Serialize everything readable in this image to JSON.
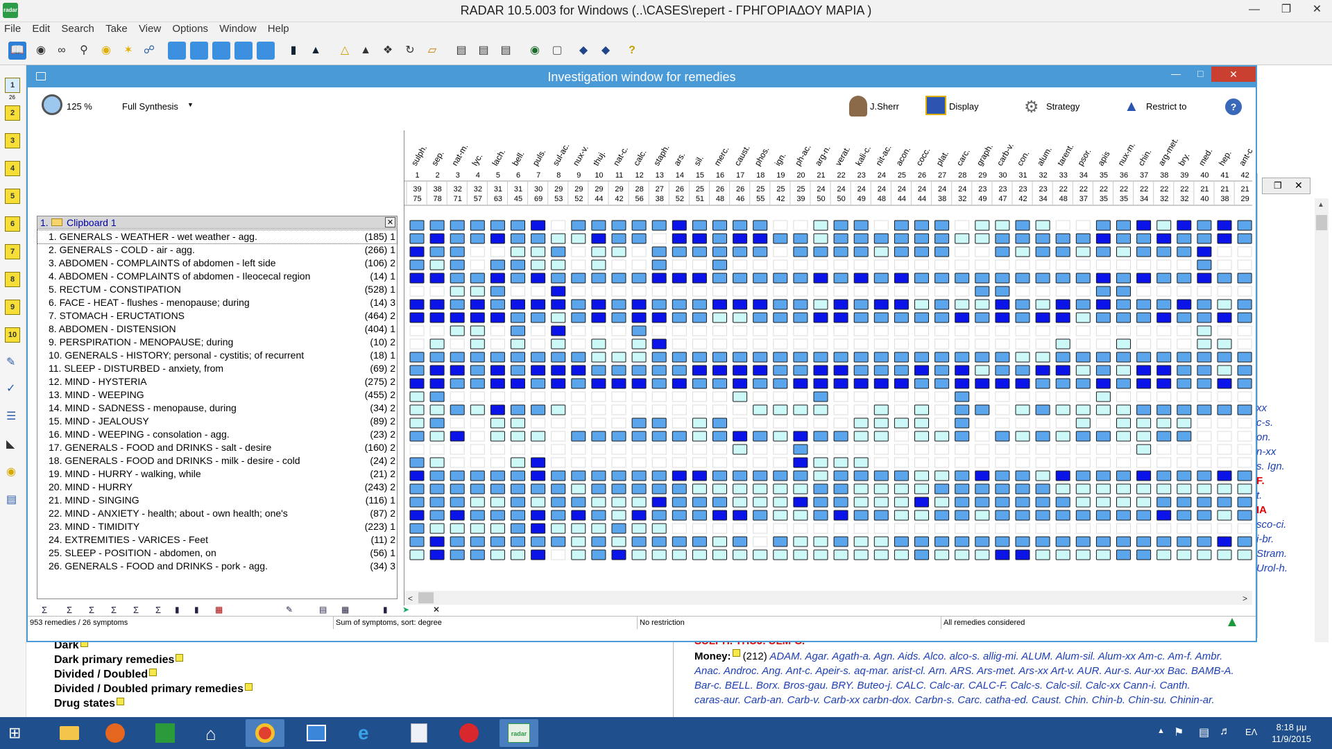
{
  "app": {
    "title": "RADAR 10.5.003 for Windows  (..\\CASES\\repert - ΓΡΗΓΟΡΙΑΔΟΥ  ΜΑΡΙΑ )",
    "logo_text": "radar"
  },
  "menu": [
    "File",
    "Edit",
    "Search",
    "Take",
    "View",
    "Options",
    "Window",
    "Help"
  ],
  "left_toolbar": [
    "1",
    "2",
    "3",
    "4",
    "5",
    "6",
    "7",
    "8",
    "9",
    "10"
  ],
  "left_toolbar_top_sub": "26",
  "inv_window": {
    "title": "Investigation window for remedies",
    "zoom": "125 %",
    "analysis": "Full Synthesis",
    "sherr_label": "J.Sherr",
    "display_label": "Display",
    "strategy_label": "Strategy",
    "restrict_label": "Restrict to",
    "help": "?"
  },
  "clipboard": {
    "number": "1.",
    "title": "Clipboard 1",
    "close": "✕"
  },
  "symptoms": [
    {
      "label": "1. GENERALS - WEATHER - wet weather - agg.",
      "count": "(185) 1"
    },
    {
      "label": "2. GENERALS - COLD - air - agg.",
      "count": "(266) 1"
    },
    {
      "label": "3. ABDOMEN - COMPLAINTS of abdomen - left side",
      "count": "(106) 2"
    },
    {
      "label": "4. ABDOMEN - COMPLAINTS of abdomen - Ileocecal region",
      "count": "(14) 1"
    },
    {
      "label": "5. RECTUM - CONSTIPATION",
      "count": "(528) 1"
    },
    {
      "label": "6. FACE - HEAT - flushes - menopause; during",
      "count": "(14) 3"
    },
    {
      "label": "7. STOMACH - ERUCTATIONS",
      "count": "(464) 2"
    },
    {
      "label": "8. ABDOMEN - DISTENSION",
      "count": "(404) 1"
    },
    {
      "label": "9. PERSPIRATION - MENOPAUSE; during",
      "count": "(10) 2"
    },
    {
      "label": "10. GENERALS - HISTORY; personal - cystitis; of recurrent",
      "count": "(18) 1"
    },
    {
      "label": "11. SLEEP - DISTURBED - anxiety, from",
      "count": "(69) 2"
    },
    {
      "label": "12. MIND - HYSTERIA",
      "count": "(275) 2"
    },
    {
      "label": "13. MIND - WEEPING",
      "count": "(455) 2"
    },
    {
      "label": "14. MIND - SADNESS - menopause, during",
      "count": "(34) 2"
    },
    {
      "label": "15. MIND - JEALOUSY",
      "count": "(89) 2"
    },
    {
      "label": "16. MIND - WEEPING - consolation - agg.",
      "count": "(23) 2"
    },
    {
      "label": "17. GENERALS - FOOD and DRINKS - salt - desire",
      "count": "(160) 2"
    },
    {
      "label": "18. GENERALS - FOOD and DRINKS - milk - desire - cold",
      "count": "(24) 2"
    },
    {
      "label": "19. MIND - HURRY - walking, while",
      "count": "(21) 2"
    },
    {
      "label": "20. MIND - HURRY",
      "count": "(243) 2"
    },
    {
      "label": "21. MIND - SINGING",
      "count": "(116) 1"
    },
    {
      "label": "22. MIND - ANXIETY - health; about - own health; one's",
      "count": "(87) 2"
    },
    {
      "label": "23. MIND - TIMIDITY",
      "count": "(223) 1"
    },
    {
      "label": "24. EXTREMITIES - VARICES - Feet",
      "count": "(11) 2"
    },
    {
      "label": "25. SLEEP - POSITION - abdomen, on",
      "count": "(56) 1"
    },
    {
      "label": "26. GENERALS - FOOD and DRINKS - pork - agg.",
      "count": "(34) 3"
    }
  ],
  "remedies": [
    {
      "n": "sulph.",
      "r": "1",
      "a": "39",
      "b": "75"
    },
    {
      "n": "sep.",
      "r": "2",
      "a": "38",
      "b": "78"
    },
    {
      "n": "nat-m.",
      "r": "3",
      "a": "32",
      "b": "71"
    },
    {
      "n": "lyc.",
      "r": "4",
      "a": "32",
      "b": "57"
    },
    {
      "n": "lach.",
      "r": "5",
      "a": "31",
      "b": "63"
    },
    {
      "n": "bell.",
      "r": "6",
      "a": "31",
      "b": "45"
    },
    {
      "n": "puls.",
      "r": "7",
      "a": "30",
      "b": "69"
    },
    {
      "n": "sul-ac.",
      "r": "8",
      "a": "29",
      "b": "53"
    },
    {
      "n": "nux-v.",
      "r": "9",
      "a": "29",
      "b": "52"
    },
    {
      "n": "thuj.",
      "r": "10",
      "a": "29",
      "b": "44"
    },
    {
      "n": "nat-c.",
      "r": "11",
      "a": "29",
      "b": "42"
    },
    {
      "n": "calc.",
      "r": "12",
      "a": "28",
      "b": "56"
    },
    {
      "n": "staph.",
      "r": "13",
      "a": "27",
      "b": "38"
    },
    {
      "n": "ars.",
      "r": "14",
      "a": "26",
      "b": "52"
    },
    {
      "n": "sil.",
      "r": "15",
      "a": "25",
      "b": "51"
    },
    {
      "n": "merc.",
      "r": "16",
      "a": "26",
      "b": "48"
    },
    {
      "n": "caust.",
      "r": "17",
      "a": "26",
      "b": "46"
    },
    {
      "n": "phos.",
      "r": "18",
      "a": "25",
      "b": "55"
    },
    {
      "n": "ign.",
      "r": "19",
      "a": "25",
      "b": "42"
    },
    {
      "n": "ph-ac.",
      "r": "20",
      "a": "25",
      "b": "39"
    },
    {
      "n": "arg-n.",
      "r": "21",
      "a": "24",
      "b": "50"
    },
    {
      "n": "verat.",
      "r": "22",
      "a": "24",
      "b": "50"
    },
    {
      "n": "kali-c.",
      "r": "23",
      "a": "24",
      "b": "49"
    },
    {
      "n": "nit-ac.",
      "r": "24",
      "a": "24",
      "b": "48"
    },
    {
      "n": "acon.",
      "r": "25",
      "a": "24",
      "b": "44"
    },
    {
      "n": "cocc.",
      "r": "26",
      "a": "24",
      "b": "44"
    },
    {
      "n": "plat.",
      "r": "27",
      "a": "24",
      "b": "38"
    },
    {
      "n": "carc.",
      "r": "28",
      "a": "24",
      "b": "32"
    },
    {
      "n": "graph.",
      "r": "29",
      "a": "23",
      "b": "49"
    },
    {
      "n": "carb-v.",
      "r": "30",
      "a": "23",
      "b": "47"
    },
    {
      "n": "con.",
      "r": "31",
      "a": "23",
      "b": "42"
    },
    {
      "n": "alum.",
      "r": "32",
      "a": "23",
      "b": "34"
    },
    {
      "n": "tarent.",
      "r": "33",
      "a": "22",
      "b": "48"
    },
    {
      "n": "psor.",
      "r": "34",
      "a": "22",
      "b": "37"
    },
    {
      "n": "apis",
      "r": "35",
      "a": "22",
      "b": "35"
    },
    {
      "n": "nux-m.",
      "r": "36",
      "a": "22",
      "b": "35"
    },
    {
      "n": "chin.",
      "r": "37",
      "a": "22",
      "b": "34"
    },
    {
      "n": "arg-met.",
      "r": "38",
      "a": "22",
      "b": "32"
    },
    {
      "n": "bry.",
      "r": "39",
      "a": "22",
      "b": "32"
    },
    {
      "n": "med.",
      "r": "40",
      "a": "21",
      "b": "40"
    },
    {
      "n": "hep.",
      "r": "41",
      "a": "21",
      "b": "38"
    },
    {
      "n": "ant-c.",
      "r": "42",
      "a": "21",
      "b": "29"
    }
  ],
  "grid_rows": [
    "222222302222232222001220222011210022313232",
    "232232211322033233221222222112222232232232",
    "3220011201102222220222212220021221212223",
    "212022110100200200000000000000000000000200",
    "332232322222333222223232322222222232322322",
    "001120030000000000000000000022000022000000",
    "332323332323222333221323312113213232223212",
    "333332212323322112223322222323233122232232",
    "001102030002000000000000000000000000000100",
    "010101010101300000000000000000001001000110",
    "222222222111222222222222222222112222222222",
    "233232333222223333223322232312233121332212",
    "332233232333232232233333322333322232332232",
    "120000000000000010002000000200000010000000",
    "112132210000000001111001010220121111222222",
    "120011000002201200000011110200000101111000",
    "213011102222221232132211011202121221122",
    "000000000000000010020000000000000000100000",
    "210001300000000000031110000000000000000000",
    "322222322222233222221222211232213222322232",
    "222222221222221111112211112222221111111111",
    "222112122111322211132211131222222111122222",
    "323222323213222332112322112212222222232212",
    "211112311121100000000000000000000000000000",
    "232222221212222120211211222222222222222232",
    "132211301231111111111111121113311112211111"
  ],
  "status": {
    "left": "953 remedies / 26 symptoms",
    "sort": "Sum of symptoms, sort: degree",
    "restriction": "No restriction",
    "remedies_considered": "All remedies considered"
  },
  "bottom_toolbar_close": "✕",
  "background_left": [
    "Dark",
    "Dark  primary remedies",
    "Divided / Doubled",
    "Divided / Doubled primary remedies",
    "Drug states"
  ],
  "background_right": {
    "top_cut": "SULPH. THUJ. ULM-C.",
    "money_label": "Money:",
    "money_count": "(212)",
    "lines": [
      "ADAM. Agar. Agath-a. Agn. Aids. Alco. alco-s. allig-mi. ALUM. Alum-sil. Alum-xx Am-c. Am-f. Ambr.",
      "Anac. Androc. Ang. Ant-c. Apeir-s. aq-mar. arist-cl. Arn. ARS. Ars-met. Ars-xx Art-v. AUR. Aur-s. Aur-xx Bac. BAMB-A.",
      "Bar-c. BELL. Borx. Bros-gau. BRY. Buteo-j. CALC. Calc-ar. CALC-F. Calc-s. Calc-sil. Calc-xx Cann-i. Canth.",
      "caras-aur. Carb-an. Carb-v. Carb-xx carbn-dox. Carbn-s. Carc. catha-ed. Caust. Chin. Chin-b. Chin-su. Chinin-ar."
    ],
    "margin_items": [
      "xx",
      "c-s.",
      "on.",
      "n-xx",
      "s. Ign.",
      "F.",
      "t.",
      "IA",
      "sco-ci.",
      "i-br.",
      "Stram.",
      "Urol-h."
    ]
  },
  "taskbar": {
    "clock_time": "8:18 μμ",
    "clock_date": "11/9/2015",
    "lang": "ΕΛ"
  },
  "colors": {
    "cell3": "#0a14e8",
    "cell2": "#5aa5ec",
    "cell1": "#cdf8f8",
    "window_border": "#4a9ad8",
    "taskbar": "#1f4f8c"
  }
}
